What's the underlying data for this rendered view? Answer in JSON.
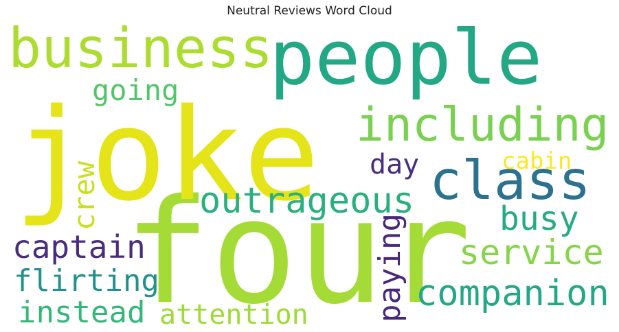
{
  "chart_data": {
    "type": "wordcloud",
    "title": "Neutral Reviews Word Cloud",
    "colormap": "viridis",
    "background": "#ffffff",
    "words": [
      {
        "text": "four",
        "weight": 1.0,
        "color": "#a5db36"
      },
      {
        "text": "joke",
        "weight": 0.95,
        "color": "#e5e419"
      },
      {
        "text": "people",
        "weight": 0.6,
        "color": "#22a884"
      },
      {
        "text": "business",
        "weight": 0.45,
        "color": "#addc30"
      },
      {
        "text": "class",
        "weight": 0.42,
        "color": "#2c728e"
      },
      {
        "text": "including",
        "weight": 0.38,
        "color": "#7ad151"
      },
      {
        "text": "companion",
        "weight": 0.3,
        "color": "#22a884"
      },
      {
        "text": "outrageous",
        "weight": 0.28,
        "color": "#2ab07f"
      },
      {
        "text": "service",
        "weight": 0.26,
        "color": "#86d549"
      },
      {
        "text": "captain",
        "weight": 0.24,
        "color": "#472d7b"
      },
      {
        "text": "flirting",
        "weight": 0.23,
        "color": "#21918c"
      },
      {
        "text": "busy",
        "weight": 0.23,
        "color": "#25ab82"
      },
      {
        "text": "instead",
        "weight": 0.22,
        "color": "#35b779"
      },
      {
        "text": "paying",
        "weight": 0.22,
        "color": "#482979"
      },
      {
        "text": "going",
        "weight": 0.2,
        "color": "#52c569"
      },
      {
        "text": "attention",
        "weight": 0.2,
        "color": "#a0da39"
      },
      {
        "text": "crew",
        "weight": 0.2,
        "color": "#c8e020"
      },
      {
        "text": "day",
        "weight": 0.19,
        "color": "#472f7d"
      },
      {
        "text": "cabin",
        "weight": 0.18,
        "color": "#fde725"
      }
    ]
  }
}
